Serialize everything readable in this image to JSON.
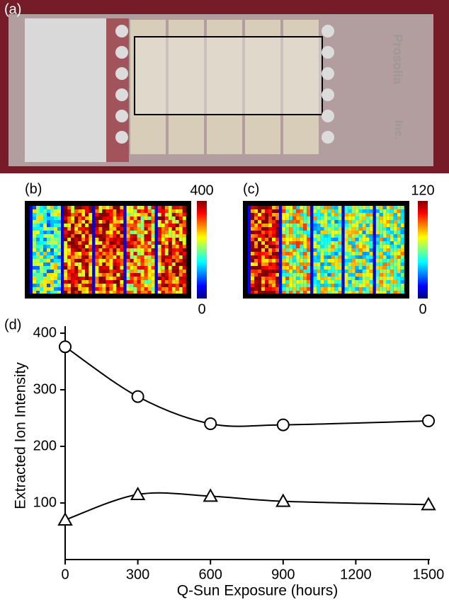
{
  "photo": {
    "label": "(a)",
    "slide_text": [
      "Prosolia",
      "Inc."
    ]
  },
  "heatmaps": [
    {
      "label": "(b)",
      "max": 400,
      "min": 0
    },
    {
      "label": "(c)",
      "max": 120,
      "min": 0
    }
  ],
  "chart_data": {
    "type": "line",
    "panel_label": "(d)",
    "x_label": "Q-Sun Exposure (hours)",
    "y_label": "Extracted Ion Intensity",
    "x": [
      0,
      300,
      600,
      900,
      1500
    ],
    "series": [
      {
        "marker": "circle",
        "color": "#000000",
        "values": [
          376,
          288,
          240,
          238,
          245
        ]
      },
      {
        "marker": "triangle",
        "color": "#000000",
        "values": [
          70,
          115,
          112,
          103,
          97
        ]
      }
    ],
    "xlim": [
      0,
      1500
    ],
    "ylim": [
      0,
      400
    ],
    "xticks": [
      0,
      300,
      600,
      900,
      1200,
      1500
    ],
    "yticks": [
      100,
      200,
      300,
      400
    ],
    "smooth": true
  }
}
